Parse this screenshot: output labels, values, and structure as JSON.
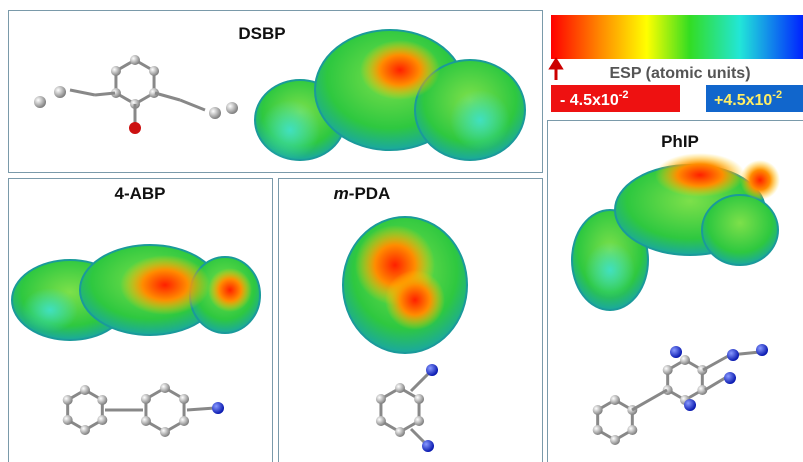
{
  "panels": [
    {
      "label": "DSBP"
    },
    {
      "label": "4-ABP"
    },
    {
      "label": {
        "italic": "m",
        "rest": "-PDA"
      }
    },
    {
      "label": "PhIP"
    }
  ],
  "legend": {
    "title": "ESP (atomic units)",
    "min_label": {
      "base": "- 4.5x10",
      "exponent": "-2"
    },
    "max_label": {
      "base": "+4.5x10",
      "exponent": "-2"
    }
  }
}
